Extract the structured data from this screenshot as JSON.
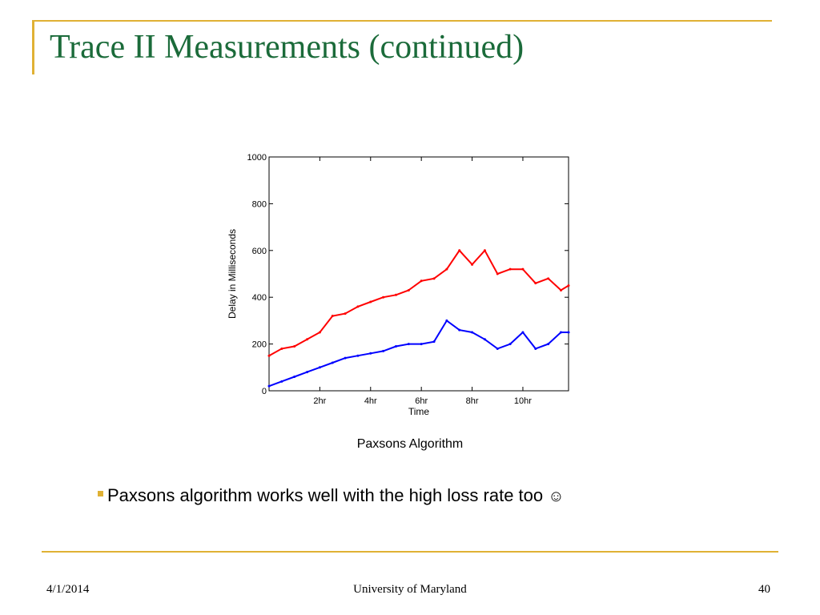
{
  "slide": {
    "title": "Trace II Measurements (continued)",
    "caption": "Paxsons Algorithm",
    "bullet": "Paxsons algorithm works well with the high loss rate too",
    "smiley": "☺",
    "footer": {
      "date": "4/1/2014",
      "center": "University of Maryland",
      "page": "40"
    }
  },
  "colors": {
    "accent": "#e0b134",
    "title": "#1b6b3a",
    "red_series": "#ff0000",
    "blue_series": "#0000ff"
  },
  "chart_data": {
    "type": "line",
    "title": "",
    "xlabel": "Time",
    "ylabel": "Delay in Milliseconds",
    "xlim": [
      0,
      11.8
    ],
    "ylim": [
      0,
      1000
    ],
    "x_ticks": [
      2,
      4,
      6,
      8,
      10
    ],
    "x_tick_labels": [
      "2hr",
      "4hr",
      "6hr",
      "8hr",
      "10hr"
    ],
    "y_ticks": [
      0,
      200,
      400,
      600,
      800,
      1000
    ],
    "y_tick_labels": [
      "0",
      "200",
      "400",
      "600",
      "800",
      "1000"
    ],
    "grid": false,
    "series": [
      {
        "color": "#ff0000",
        "x": [
          0,
          0.5,
          1,
          1.5,
          2,
          2.5,
          3,
          3.5,
          4,
          4.5,
          5,
          5.5,
          6,
          6.5,
          7,
          7.5,
          8,
          8.5,
          9,
          9.5,
          10,
          10.5,
          11,
          11.5,
          11.8
        ],
        "y": [
          150,
          180,
          190,
          220,
          250,
          320,
          330,
          360,
          380,
          400,
          410,
          430,
          470,
          480,
          520,
          600,
          540,
          600,
          500,
          520,
          520,
          460,
          480,
          430,
          450
        ]
      },
      {
        "color": "#0000ff",
        "x": [
          0,
          0.5,
          1,
          1.5,
          2,
          2.5,
          3,
          3.5,
          4,
          4.5,
          5,
          5.5,
          6,
          6.5,
          7,
          7.5,
          8,
          8.5,
          9,
          9.5,
          10,
          10.5,
          11,
          11.5,
          11.8
        ],
        "y": [
          20,
          40,
          60,
          80,
          100,
          120,
          140,
          150,
          160,
          170,
          190,
          200,
          200,
          210,
          300,
          260,
          250,
          220,
          180,
          200,
          250,
          180,
          200,
          250,
          250
        ]
      }
    ]
  }
}
